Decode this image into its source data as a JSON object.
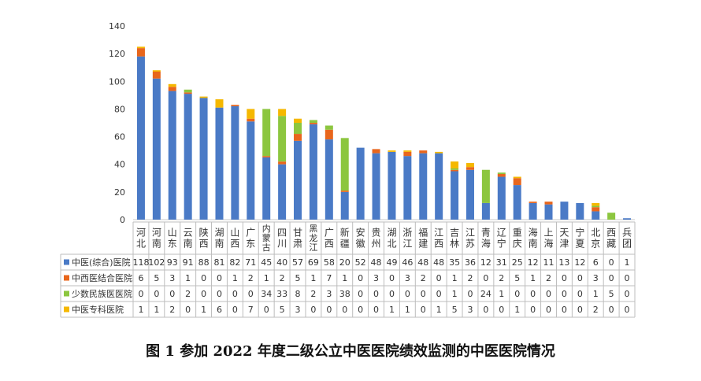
{
  "caption": "图 1 参加 2022 年度二级公立中医医院绩效监测的中医医院情况",
  "chart_data": {
    "type": "bar",
    "stacked": true,
    "ylim": [
      0,
      140
    ],
    "yticks": [
      0,
      20,
      40,
      60,
      80,
      100,
      120,
      140
    ],
    "grid": false,
    "legend": "data-table",
    "categories": [
      "河北",
      "河南",
      "山东",
      "云南",
      "陕西",
      "湖南",
      "山西",
      "广东",
      "内蒙古",
      "四川",
      "甘肃",
      "黑龙江",
      "广西",
      "新疆",
      "安徽",
      "贵州",
      "湖北",
      "浙江",
      "福建",
      "江西",
      "吉林",
      "江苏",
      "青海",
      "辽宁",
      "重庆",
      "海南",
      "上海",
      "天津",
      "宁夏",
      "北京",
      "西藏",
      "兵团"
    ],
    "series": [
      {
        "name": "中医(综合)医院",
        "color": "#4a7ac6",
        "values": [
          118,
          102,
          93,
          91,
          88,
          81,
          82,
          71,
          45,
          40,
          57,
          69,
          58,
          20,
          52,
          48,
          49,
          46,
          48,
          48,
          35,
          36,
          12,
          31,
          25,
          12,
          11,
          13,
          12,
          6,
          0,
          1
        ]
      },
      {
        "name": "中西医结合医院",
        "color": "#e8661c",
        "values": [
          6,
          5,
          3,
          1,
          0,
          0,
          1,
          2,
          1,
          2,
          5,
          1,
          7,
          1,
          0,
          3,
          0,
          3,
          2,
          0,
          1,
          2,
          0,
          2,
          5,
          1,
          2,
          0,
          0,
          3,
          0,
          0
        ]
      },
      {
        "name": "少数民族医医院",
        "color": "#8cc63f",
        "values": [
          0,
          0,
          0,
          2,
          0,
          0,
          0,
          0,
          34,
          33,
          8,
          2,
          3,
          38,
          0,
          0,
          0,
          0,
          0,
          0,
          1,
          0,
          24,
          1,
          0,
          0,
          0,
          0,
          0,
          1,
          5,
          0
        ]
      },
      {
        "name": "中医专科医院",
        "color": "#f5b800",
        "values": [
          1,
          1,
          2,
          0,
          1,
          6,
          0,
          7,
          0,
          5,
          3,
          0,
          0,
          0,
          0,
          0,
          1,
          1,
          0,
          1,
          5,
          3,
          0,
          0,
          1,
          0,
          0,
          0,
          0,
          2,
          0,
          0
        ]
      }
    ]
  }
}
